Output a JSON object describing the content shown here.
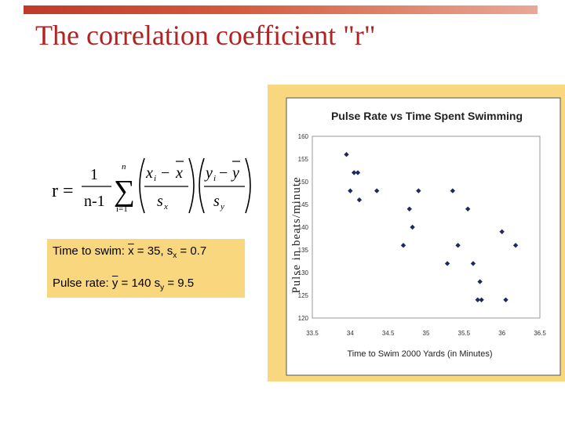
{
  "slide": {
    "title": "The correlation coefficient \"r\""
  },
  "formula": {
    "lhs": "r =",
    "numerator_one": "1",
    "denominator": "n-1",
    "sum_upper": "n",
    "sum_lower": "i=1",
    "x_term": "x",
    "x_index": "i",
    "x_bar": "x",
    "s_x": "s",
    "s_x_sub": "x",
    "y_term": "y",
    "y_index": "i",
    "y_bar": "y",
    "s_y": "s",
    "s_y_sub": "y",
    "minus": "−",
    "sigma": "∑"
  },
  "summary": {
    "swim_prefix": "Time to swim: ",
    "swim_var": "x",
    "swim_mid": " = 35, s",
    "swim_sub": "x",
    "swim_end": " = 0.7",
    "pulse_prefix": "Pulse rate: ",
    "pulse_var": "y",
    "pulse_mid": " = 140 s",
    "pulse_sub": "y",
    "pulse_end": " = 9.5"
  },
  "chart_data": {
    "type": "scatter",
    "title": "Pulse Rate vs Time Spent Swimming",
    "xlabel": "Time to Swim 2000 Yards (in Minutes)",
    "ylabel": "Pulse in beats/minute",
    "xlim": [
      33.5,
      36.5
    ],
    "ylim": [
      120,
      160
    ],
    "x_ticks": [
      "33.5",
      "34",
      "34.5",
      "35",
      "35.5",
      "36",
      "36.5"
    ],
    "y_ticks": [
      "120",
      "125",
      "130",
      "135",
      "140",
      "145",
      "150",
      "155",
      "160"
    ],
    "grid": false,
    "marker_color": "#1f2a5c",
    "points": [
      {
        "x": 33.95,
        "y": 156
      },
      {
        "x": 34.0,
        "y": 148
      },
      {
        "x": 34.05,
        "y": 152
      },
      {
        "x": 34.1,
        "y": 152
      },
      {
        "x": 34.12,
        "y": 146
      },
      {
        "x": 34.35,
        "y": 148
      },
      {
        "x": 34.7,
        "y": 136
      },
      {
        "x": 34.78,
        "y": 144
      },
      {
        "x": 34.82,
        "y": 140
      },
      {
        "x": 34.9,
        "y": 148
      },
      {
        "x": 35.28,
        "y": 132
      },
      {
        "x": 35.35,
        "y": 148
      },
      {
        "x": 35.42,
        "y": 136
      },
      {
        "x": 35.55,
        "y": 144
      },
      {
        "x": 35.62,
        "y": 132
      },
      {
        "x": 35.68,
        "y": 124
      },
      {
        "x": 35.71,
        "y": 128
      },
      {
        "x": 35.73,
        "y": 124
      },
      {
        "x": 36.0,
        "y": 139
      },
      {
        "x": 36.05,
        "y": 124
      },
      {
        "x": 36.18,
        "y": 136
      }
    ]
  }
}
